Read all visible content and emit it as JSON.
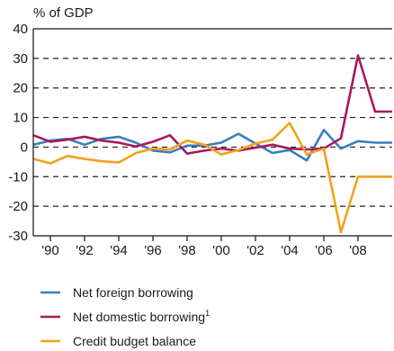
{
  "chart_data": {
    "type": "line",
    "ylabel": "% of GDP",
    "ylim": [
      -30,
      40
    ],
    "yticks": [
      40,
      30,
      20,
      10,
      0,
      -10,
      -20,
      -30
    ],
    "ytick_labels": [
      "40",
      "30",
      "20",
      "10",
      "0",
      "-10",
      "-20",
      "-30"
    ],
    "xlim": [
      1989,
      2010
    ],
    "xticks": [
      1990,
      1992,
      1994,
      1996,
      1998,
      2000,
      2002,
      2004,
      2006,
      2008
    ],
    "xtick_labels": [
      "'90",
      "'92",
      "'94",
      "'96",
      "'98",
      "'00",
      "'02",
      "'04",
      "'06",
      "'08"
    ],
    "grid": "horizontal dashed",
    "legend_position": "bottom",
    "x": [
      1989,
      1990,
      1991,
      1992,
      1993,
      1994,
      1995,
      1996,
      1997,
      1998,
      1999,
      2000,
      2001,
      2002,
      2003,
      2004,
      2005,
      2006,
      2007,
      2008,
      2009,
      2010
    ],
    "series": [
      {
        "name": "Net foreign borrowing",
        "color": "#3a7dbe",
        "values": [
          0.8,
          2.2,
          2.8,
          0.8,
          2.8,
          3.5,
          1.5,
          -1.2,
          -1.8,
          0.5,
          0.5,
          1.5,
          4.5,
          1.2,
          -2.0,
          -1.0,
          -4.5,
          5.8,
          -0.5,
          2.0,
          1.5,
          1.5
        ]
      },
      {
        "name": "Net domestic  borrowing",
        "name_superscript": "1",
        "color": "#a8195c",
        "values": [
          4.0,
          1.8,
          2.5,
          3.5,
          2.2,
          1.5,
          0.2,
          1.8,
          4.0,
          -2.2,
          -1.2,
          -0.5,
          -1.2,
          -0.2,
          0.8,
          -0.5,
          -0.8,
          -0.5,
          3.0,
          31.0,
          12.0,
          12.0
        ]
      },
      {
        "name": "Credit budget balance",
        "color": "#f4a11d",
        "values": [
          -4.0,
          -5.5,
          -3.0,
          -4.0,
          -4.8,
          -5.2,
          -2.0,
          -0.5,
          -0.8,
          2.2,
          0.8,
          -2.5,
          -1.0,
          1.2,
          2.5,
          8.2,
          -2.5,
          -0.5,
          -28.8,
          -10.0,
          -10.0,
          -10.0
        ]
      }
    ]
  }
}
